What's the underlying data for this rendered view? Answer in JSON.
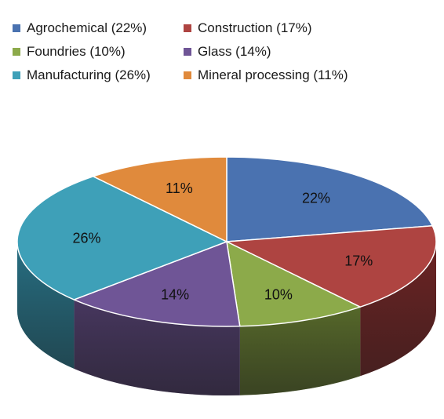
{
  "chart_data": {
    "type": "pie",
    "title": "",
    "legend_position": "top",
    "categories": [
      "Agrochemical",
      "Construction",
      "Foundries",
      "Glass",
      "Manufacturing",
      "Mineral processing"
    ],
    "values": [
      22,
      17,
      10,
      14,
      26,
      11
    ],
    "legend_labels": [
      "Agrochemical (22%)",
      "Construction (17%)",
      "Foundries (10%)",
      "Glass (14%)",
      "Manufacturing (26%)",
      "Mineral processing (11%)"
    ],
    "data_labels": [
      "22%",
      "17%",
      "10%",
      "14%",
      "26%",
      "11%"
    ],
    "colors": [
      "#4a72b0",
      "#ae4441",
      "#8caa4a",
      "#6f5596",
      "#3ea0b8",
      "#e08a3c"
    ],
    "side_colors": [
      "#2f4c7a",
      "#6e2424",
      "#56682a",
      "#47375f",
      "#277084",
      "#a5622a"
    ]
  }
}
